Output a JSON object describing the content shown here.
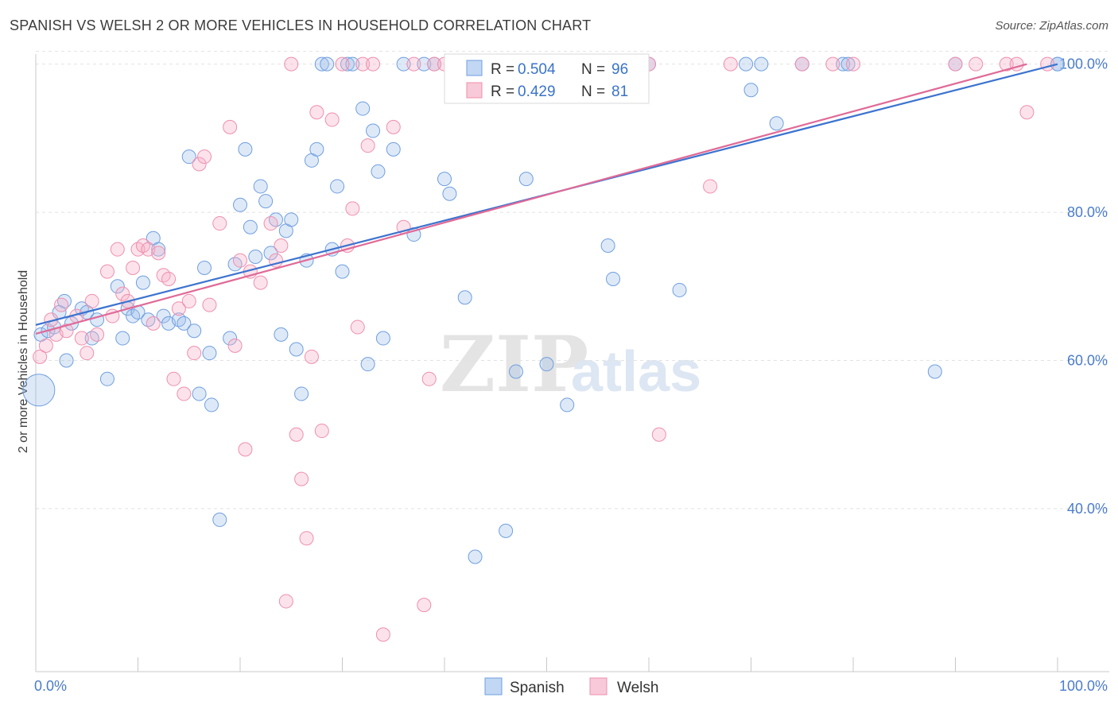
{
  "title": "SPANISH VS WELSH 2 OR MORE VEHICLES IN HOUSEHOLD CORRELATION CHART",
  "source": "Source: ZipAtlas.com",
  "watermark": {
    "zip": "ZIP",
    "atlas": "atlas"
  },
  "stats": [
    {
      "r_label": "R = ",
      "r_value": "0.504",
      "n_label": "N = ",
      "n_value": "96",
      "color": "#6f9fe0"
    },
    {
      "r_label": "R = ",
      "r_value": "0.429",
      "n_label": "N = ",
      "n_value": "81",
      "color": "#ef8fae"
    }
  ],
  "chart_data": {
    "type": "scatter",
    "title": "SPANISH VS WELSH 2 OR MORE VEHICLES IN HOUSEHOLD CORRELATION CHART",
    "xlabel": "",
    "ylabel": "2 or more Vehicles in Household",
    "xlim": [
      0,
      100
    ],
    "ylim": [
      18,
      102
    ],
    "x_tick_labels": [
      "0.0%",
      "100.0%"
    ],
    "y_ticks": [
      40,
      60,
      80,
      100
    ],
    "y_tick_labels": [
      "40.0%",
      "60.0%",
      "80.0%",
      "100.0%"
    ],
    "grid": true,
    "legend_position": "bottom-center",
    "series": [
      {
        "name": "Spanish",
        "color": "#6f9fe0",
        "trend": [
          [
            0,
            64.8
          ],
          [
            100,
            100
          ]
        ],
        "points": [
          [
            0.3,
            56
          ],
          [
            0.5,
            63.5
          ],
          [
            1.2,
            64
          ],
          [
            1.8,
            64.5
          ],
          [
            2.3,
            66.5
          ],
          [
            2.8,
            68
          ],
          [
            3.0,
            60
          ],
          [
            3.5,
            65
          ],
          [
            4.5,
            67
          ],
          [
            5.0,
            66.5
          ],
          [
            5.5,
            63
          ],
          [
            6.0,
            65.5
          ],
          [
            7.0,
            57.5
          ],
          [
            8.0,
            70
          ],
          [
            8.5,
            63
          ],
          [
            9.0,
            67
          ],
          [
            9.5,
            66
          ],
          [
            10.0,
            66.5
          ],
          [
            10.5,
            70.5
          ],
          [
            11.0,
            65.5
          ],
          [
            11.5,
            76.5
          ],
          [
            12.0,
            75
          ],
          [
            12.5,
            66
          ],
          [
            13.0,
            65
          ],
          [
            14.0,
            65.5
          ],
          [
            14.5,
            65
          ],
          [
            15.0,
            87.5
          ],
          [
            15.5,
            64
          ],
          [
            16.0,
            55.5
          ],
          [
            16.5,
            72.5
          ],
          [
            17.0,
            61
          ],
          [
            17.2,
            54
          ],
          [
            18.0,
            38.5
          ],
          [
            19.0,
            63
          ],
          [
            19.5,
            73
          ],
          [
            20.0,
            81
          ],
          [
            20.5,
            88.5
          ],
          [
            21.0,
            78
          ],
          [
            21.5,
            74
          ],
          [
            22.0,
            83.5
          ],
          [
            22.5,
            81.5
          ],
          [
            23.0,
            74.5
          ],
          [
            23.5,
            79
          ],
          [
            24.0,
            63.5
          ],
          [
            24.5,
            77.5
          ],
          [
            25.0,
            79
          ],
          [
            25.5,
            61.5
          ],
          [
            26.0,
            55.5
          ],
          [
            26.5,
            73.5
          ],
          [
            27.0,
            87
          ],
          [
            27.5,
            88.5
          ],
          [
            28.0,
            100
          ],
          [
            28.5,
            100
          ],
          [
            29.0,
            75
          ],
          [
            29.5,
            83.5
          ],
          [
            30.0,
            72
          ],
          [
            30.5,
            100
          ],
          [
            31.0,
            100
          ],
          [
            32.0,
            94
          ],
          [
            32.5,
            59.5
          ],
          [
            33.0,
            91
          ],
          [
            33.5,
            85.5
          ],
          [
            34.0,
            63
          ],
          [
            35.0,
            88.5
          ],
          [
            36.0,
            100
          ],
          [
            37.0,
            77
          ],
          [
            38.0,
            100
          ],
          [
            39.0,
            100
          ],
          [
            40.0,
            84.5
          ],
          [
            40.5,
            82.5
          ],
          [
            41.5,
            100
          ],
          [
            42.0,
            68.5
          ],
          [
            43.0,
            33.5
          ],
          [
            44.0,
            100
          ],
          [
            45.0,
            97
          ],
          [
            46.0,
            37
          ],
          [
            47.0,
            58.5
          ],
          [
            48.0,
            84.5
          ],
          [
            50.0,
            59.5
          ],
          [
            52.0,
            54
          ],
          [
            55.0,
            100
          ],
          [
            56.0,
            75.5
          ],
          [
            56.5,
            71
          ],
          [
            60.0,
            100
          ],
          [
            63.0,
            69.5
          ],
          [
            69.5,
            100
          ],
          [
            70.0,
            96.5
          ],
          [
            71.0,
            100
          ],
          [
            72.5,
            92
          ],
          [
            75.0,
            100
          ],
          [
            79.0,
            100
          ],
          [
            79.5,
            100
          ],
          [
            88.0,
            58.5
          ],
          [
            90.0,
            100
          ],
          [
            100.0,
            100
          ],
          [
            100.0,
            100
          ]
        ]
      },
      {
        "name": "Welsh",
        "color": "#ef8fae",
        "trend": [
          [
            0,
            63.6
          ],
          [
            97,
            100
          ]
        ],
        "points": [
          [
            0.4,
            60.5
          ],
          [
            1.0,
            62
          ],
          [
            1.5,
            65.5
          ],
          [
            2.0,
            63.5
          ],
          [
            2.5,
            67.5
          ],
          [
            3.0,
            64
          ],
          [
            4.0,
            66
          ],
          [
            4.5,
            63
          ],
          [
            5.0,
            61
          ],
          [
            5.5,
            68
          ],
          [
            6.0,
            63.5
          ],
          [
            7.0,
            72
          ],
          [
            7.5,
            66
          ],
          [
            8.0,
            75
          ],
          [
            8.5,
            69
          ],
          [
            9.0,
            68
          ],
          [
            9.5,
            72.5
          ],
          [
            10.0,
            75
          ],
          [
            10.5,
            75.5
          ],
          [
            11.0,
            75
          ],
          [
            11.5,
            65
          ],
          [
            12.0,
            74.5
          ],
          [
            12.5,
            71.5
          ],
          [
            13.0,
            71
          ],
          [
            13.5,
            57.5
          ],
          [
            14.0,
            67
          ],
          [
            14.5,
            55.5
          ],
          [
            15.0,
            68
          ],
          [
            15.5,
            61
          ],
          [
            16.0,
            86.5
          ],
          [
            16.5,
            87.5
          ],
          [
            17.0,
            67.5
          ],
          [
            18.0,
            78.5
          ],
          [
            19.0,
            91.5
          ],
          [
            19.5,
            62
          ],
          [
            20.0,
            73.5
          ],
          [
            20.5,
            48
          ],
          [
            21.0,
            72
          ],
          [
            22.0,
            70.5
          ],
          [
            23.0,
            78.5
          ],
          [
            23.5,
            73.5
          ],
          [
            24.0,
            75.5
          ],
          [
            24.5,
            27.5
          ],
          [
            25.0,
            100
          ],
          [
            25.5,
            50
          ],
          [
            26.0,
            44
          ],
          [
            26.5,
            36
          ],
          [
            27.0,
            60.5
          ],
          [
            27.5,
            93.5
          ],
          [
            28.0,
            50.5
          ],
          [
            29.0,
            92.5
          ],
          [
            30.0,
            100
          ],
          [
            30.5,
            75.5
          ],
          [
            31.0,
            80.5
          ],
          [
            31.5,
            64.5
          ],
          [
            32.0,
            100
          ],
          [
            32.5,
            89
          ],
          [
            33.0,
            100
          ],
          [
            34.0,
            23
          ],
          [
            35.0,
            91.5
          ],
          [
            36.0,
            78
          ],
          [
            37.0,
            100
          ],
          [
            38.0,
            27
          ],
          [
            38.5,
            57.5
          ],
          [
            39.0,
            100
          ],
          [
            40.0,
            100
          ],
          [
            47.0,
            100
          ],
          [
            55.0,
            100
          ],
          [
            60.0,
            100
          ],
          [
            61.0,
            50
          ],
          [
            66.0,
            83.5
          ],
          [
            68.0,
            100
          ],
          [
            75.0,
            100
          ],
          [
            78.0,
            100
          ],
          [
            80.0,
            100
          ],
          [
            90.0,
            100
          ],
          [
            92.0,
            100
          ],
          [
            95.0,
            100
          ],
          [
            96.0,
            100
          ],
          [
            97.0,
            93.5
          ],
          [
            99.0,
            100
          ]
        ]
      }
    ]
  }
}
